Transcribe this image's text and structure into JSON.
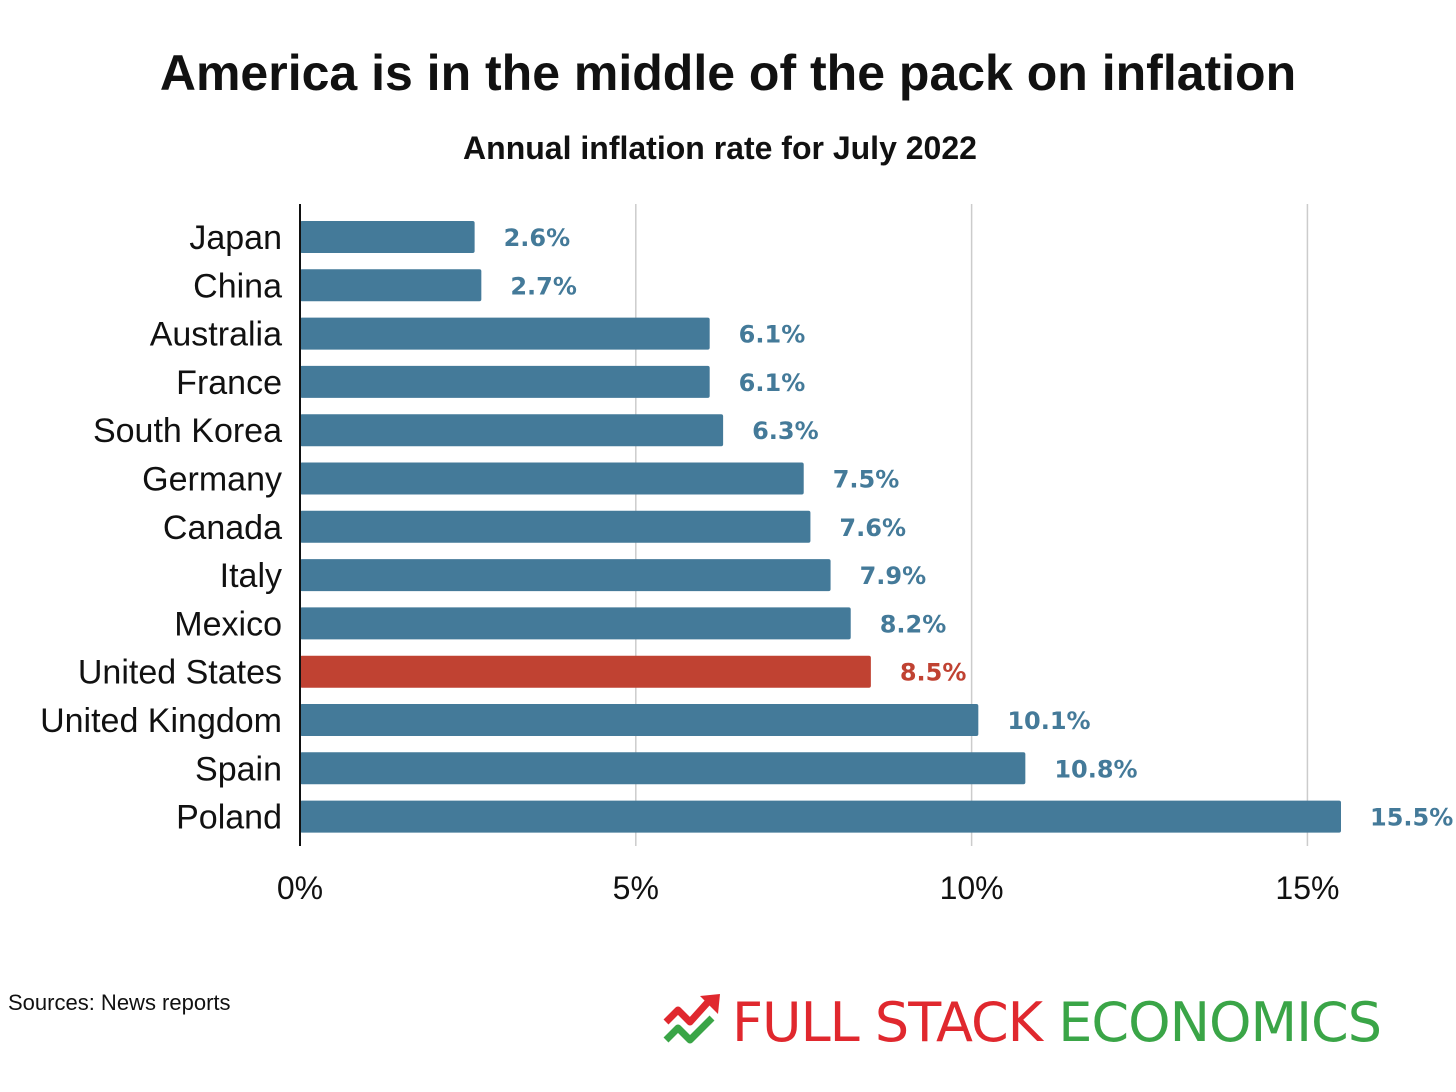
{
  "title": "America is in the middle of the pack on inflation",
  "subtitle": "Annual inflation rate for July 2022",
  "source": "Sources: News reports",
  "logo": {
    "word1": "FULL STACK",
    "word2": "ECONOMICS",
    "word1_color": "#e0282e",
    "word2_color": "#3aa547"
  },
  "chart_data": {
    "type": "bar",
    "orientation": "horizontal",
    "title": "America is in the middle of the pack on inflation",
    "subtitle": "Annual inflation rate for July 2022",
    "categories": [
      "Japan",
      "China",
      "Australia",
      "France",
      "South Korea",
      "Germany",
      "Canada",
      "Italy",
      "Mexico",
      "United States",
      "United Kingdom",
      "Spain",
      "Poland"
    ],
    "values": [
      2.6,
      2.7,
      6.1,
      6.1,
      6.3,
      7.5,
      7.6,
      7.9,
      8.2,
      8.5,
      10.1,
      10.8,
      15.5
    ],
    "data_labels": [
      "2.6%",
      "2.7%",
      "6.1%",
      "6.1%",
      "6.3%",
      "7.5%",
      "7.6%",
      "7.9%",
      "8.2%",
      "8.5%",
      "10.1%",
      "10.8%",
      "15.5%"
    ],
    "highlight": "United States",
    "xlim": [
      0,
      15.5
    ],
    "xticks": [
      0,
      5,
      10,
      15
    ],
    "xtick_labels": [
      "0%",
      "5%",
      "10%",
      "15%"
    ],
    "xlabel": "",
    "ylabel": "",
    "grid": true,
    "bar_color": "#447a99",
    "highlight_color": "#c04232",
    "grid_color": "#cccccc"
  }
}
